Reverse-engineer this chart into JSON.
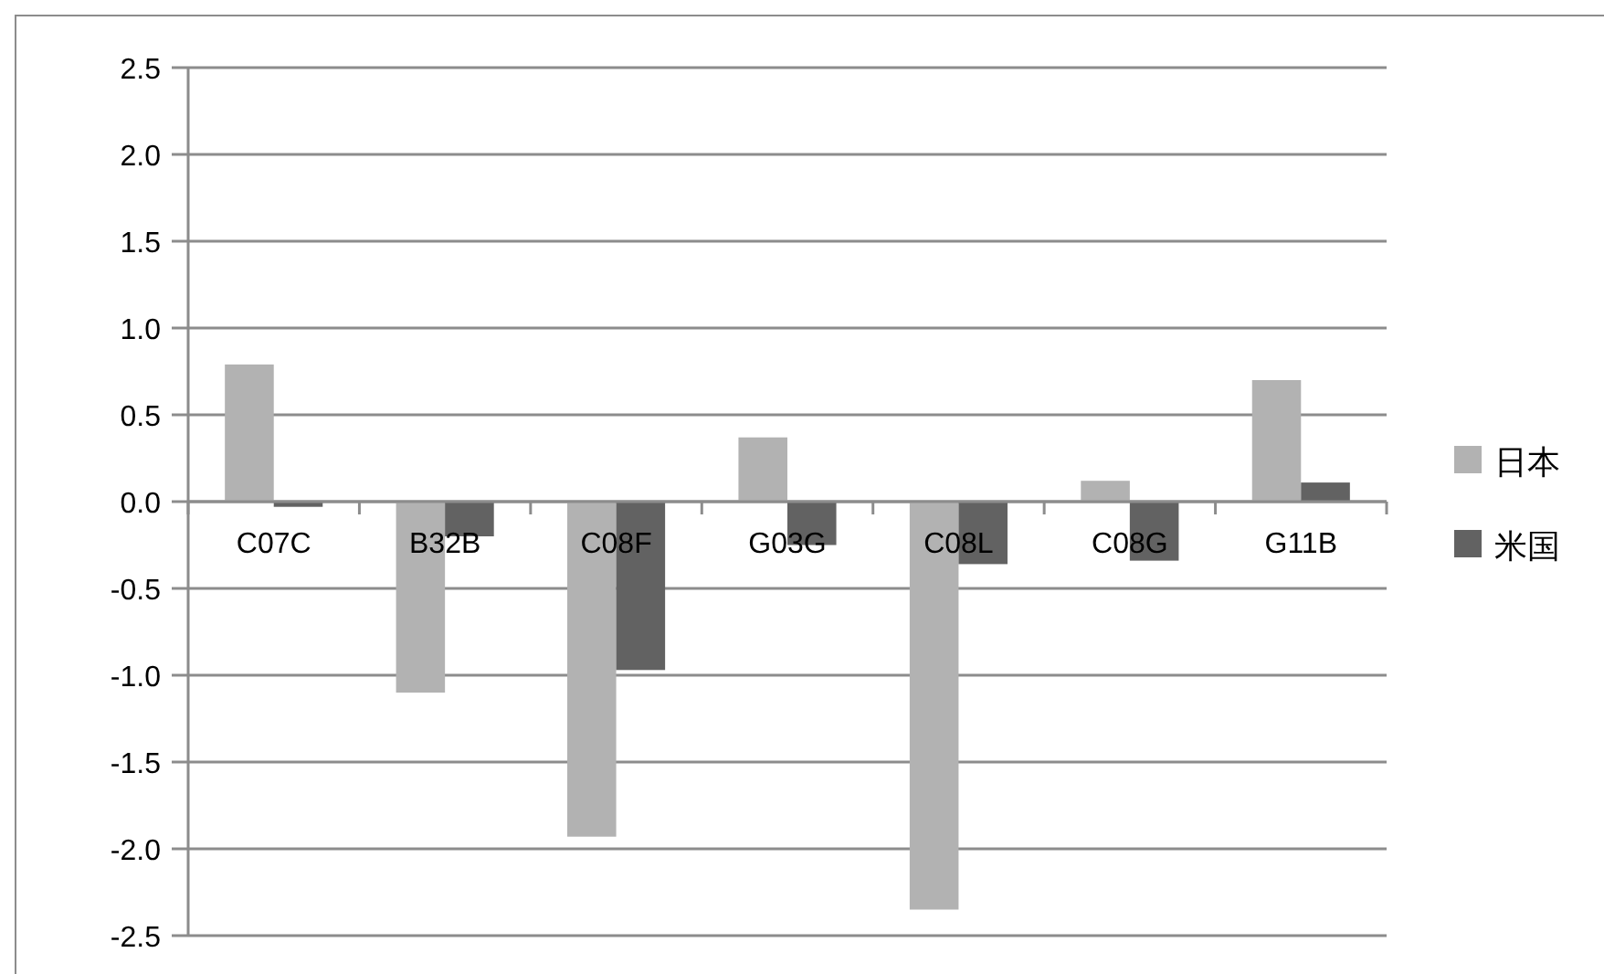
{
  "chart_data": {
    "type": "bar",
    "categories": [
      "C07C",
      "B32B",
      "C08F",
      "G03G",
      "C08L",
      "C08G",
      "G11B"
    ],
    "series": [
      {
        "name": "日本",
        "color": "#b2b2b2",
        "values": [
          0.79,
          -1.1,
          -1.93,
          0.37,
          -2.35,
          0.12,
          0.7
        ]
      },
      {
        "name": "米国",
        "color": "#626262",
        "values": [
          -0.03,
          -0.2,
          -0.97,
          -0.25,
          -0.36,
          -0.34,
          0.11
        ]
      }
    ],
    "ylim": [
      -2.5,
      2.5
    ],
    "yticks": [
      {
        "value": -2.5,
        "label": "-2.5"
      },
      {
        "value": -2.0,
        "label": "-2.0"
      },
      {
        "value": -1.5,
        "label": "-1.5"
      },
      {
        "value": -1.0,
        "label": "-1.0"
      },
      {
        "value": -0.5,
        "label": "-0.5"
      },
      {
        "value": 0,
        "label": "0.0"
      },
      {
        "value": 0.5,
        "label": "0.5"
      },
      {
        "value": 1.0,
        "label": "1.0"
      },
      {
        "value": 1.5,
        "label": "1.5"
      },
      {
        "value": 2.0,
        "label": "2.0"
      },
      {
        "value": 2.5,
        "label": "2.5"
      }
    ],
    "grid": "y",
    "legend": "right"
  }
}
